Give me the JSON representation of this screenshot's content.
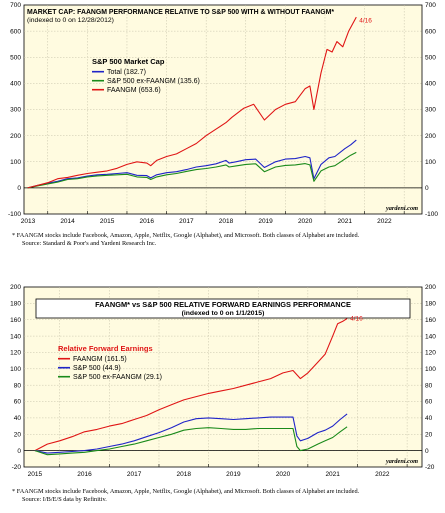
{
  "chart_data": [
    {
      "type": "line",
      "title": "MARKET CAP: FAANGM PERFORMANCE RELATIVE TO S&P 500 WITH & WITHOUT FAANGM*",
      "subtitle": "(indexed to 0 on 12/28/2012)",
      "legend_title": "S&P 500 Market Cap",
      "legend_position": "top-left",
      "ylim": [
        -100,
        700
      ],
      "yticks": [
        -100,
        0,
        100,
        200,
        300,
        400,
        500,
        600,
        700
      ],
      "xlim": [
        2012.9,
        2022.95
      ],
      "xticks": [
        2013,
        2014,
        2015,
        2016,
        2017,
        2018,
        2019,
        2020,
        2021,
        2022
      ],
      "xgrid": [
        2013.5,
        2014.5,
        2015.5,
        2016.5,
        2017.5,
        2018.5,
        2019.5,
        2020.5,
        2021.5,
        2022.5
      ],
      "grid": true,
      "annotation": {
        "text": "4/16",
        "x": 2021.29,
        "y": 640
      },
      "source_mark": "yardeni.com",
      "footnote": "*   FAANGM stocks include Facebook, Amazon, Apple, Netflix, Google (Alphabet), and Microsoft. Both classes of Alphabet are included.",
      "source": "Source: Standard & Poor's and Yardeni Research Inc.",
      "series": [
        {
          "name": "Total (182.7)",
          "color": "#1f24c8",
          "x": [
            2012.99,
            2013.25,
            2013.5,
            2013.75,
            2014.0,
            2014.25,
            2014.5,
            2014.75,
            2015.0,
            2015.25,
            2015.5,
            2015.75,
            2016.0,
            2016.1,
            2016.25,
            2016.5,
            2016.75,
            2017.0,
            2017.25,
            2017.5,
            2017.75,
            2018.0,
            2018.08,
            2018.25,
            2018.5,
            2018.75,
            2018.97,
            2019.25,
            2019.5,
            2019.75,
            2020.0,
            2020.12,
            2020.22,
            2020.4,
            2020.6,
            2020.75,
            2021.0,
            2021.15,
            2021.29
          ],
          "y": [
            0,
            10,
            18,
            25,
            35,
            38,
            45,
            50,
            52,
            55,
            58,
            48,
            47,
            38,
            50,
            58,
            62,
            70,
            80,
            85,
            92,
            105,
            95,
            100,
            108,
            110,
            78,
            100,
            110,
            112,
            120,
            115,
            35,
            90,
            115,
            120,
            150,
            165,
            182.7
          ]
        },
        {
          "name": "S&P 500 ex-FAANGM (135.6)",
          "color": "#1a8a1a",
          "x": [
            2012.99,
            2013.25,
            2013.5,
            2013.75,
            2014.0,
            2014.25,
            2014.5,
            2014.75,
            2015.0,
            2015.25,
            2015.5,
            2015.75,
            2016.0,
            2016.1,
            2016.25,
            2016.5,
            2016.75,
            2017.0,
            2017.25,
            2017.5,
            2017.75,
            2018.0,
            2018.08,
            2018.25,
            2018.5,
            2018.75,
            2018.97,
            2019.25,
            2019.5,
            2019.75,
            2020.0,
            2020.12,
            2020.22,
            2020.4,
            2020.6,
            2020.75,
            2021.0,
            2021.15,
            2021.29
          ],
          "y": [
            0,
            8,
            15,
            22,
            32,
            35,
            42,
            46,
            48,
            50,
            52,
            42,
            40,
            32,
            42,
            50,
            55,
            63,
            70,
            74,
            80,
            88,
            80,
            84,
            90,
            92,
            62,
            80,
            86,
            88,
            93,
            88,
            25,
            65,
            80,
            85,
            110,
            125,
            135.6
          ]
        },
        {
          "name": "FAANGM (653.6)",
          "color": "#e01515",
          "x": [
            2012.99,
            2013.25,
            2013.5,
            2013.75,
            2014.0,
            2014.25,
            2014.5,
            2014.75,
            2015.0,
            2015.25,
            2015.5,
            2015.75,
            2016.0,
            2016.1,
            2016.25,
            2016.5,
            2016.75,
            2017.0,
            2017.25,
            2017.5,
            2017.75,
            2018.0,
            2018.15,
            2018.45,
            2018.7,
            2018.97,
            2019.25,
            2019.5,
            2019.75,
            2020.0,
            2020.12,
            2020.22,
            2020.4,
            2020.55,
            2020.68,
            2020.8,
            2020.95,
            2021.1,
            2021.29
          ],
          "y": [
            0,
            10,
            20,
            35,
            40,
            48,
            55,
            60,
            65,
            75,
            90,
            100,
            95,
            85,
            105,
            120,
            130,
            150,
            170,
            200,
            225,
            250,
            270,
            305,
            320,
            260,
            300,
            320,
            330,
            380,
            390,
            300,
            440,
            530,
            520,
            560,
            540,
            600,
            653.6
          ]
        }
      ]
    },
    {
      "type": "line",
      "title": "FAANGM* vs S&P 500 RELATIVE FORWARD EARNINGS PERFORMANCE",
      "subtitle": "(indexed to 0 on 1/1/2015)",
      "legend_title": "Relative Forward Earnings",
      "legend_position": "top-left",
      "ylim": [
        -20,
        200
      ],
      "yticks": [
        -20,
        0,
        20,
        40,
        60,
        80,
        100,
        120,
        140,
        160,
        180,
        200
      ],
      "xlim": [
        2014.78,
        2022.8
      ],
      "xticks": [
        2015,
        2016,
        2017,
        2018,
        2019,
        2020,
        2021,
        2022
      ],
      "xgrid": [
        2015.5,
        2016.5,
        2017.5,
        2018.5,
        2019.5,
        2020.5,
        2021.5,
        2022.5
      ],
      "grid": true,
      "annotation": {
        "text": "4/16",
        "x": 2021.29,
        "y": 161.5
      },
      "source_mark": "yardeni.com",
      "footnote": "*   FAANGM stocks include Facebook, Amazon, Apple, Netflix, Google (Alphabet), and Microsoft. Both classes of Alphabet are included.",
      "source": "Source: I/B/E/S data by Refinitiv.",
      "series": [
        {
          "name": "FAANGM (161.5)",
          "color": "#e01515",
          "x": [
            2015.0,
            2015.25,
            2015.5,
            2015.75,
            2016.0,
            2016.25,
            2016.5,
            2016.75,
            2017.0,
            2017.25,
            2017.5,
            2017.75,
            2018.0,
            2018.25,
            2018.5,
            2018.75,
            2019.0,
            2019.25,
            2019.5,
            2019.75,
            2020.0,
            2020.2,
            2020.35,
            2020.5,
            2020.7,
            2020.85,
            2021.0,
            2021.1,
            2021.2,
            2021.29
          ],
          "y": [
            0,
            8,
            12,
            17,
            23,
            26,
            30,
            33,
            38,
            43,
            50,
            56,
            62,
            66,
            70,
            73,
            76,
            80,
            84,
            88,
            95,
            98,
            88,
            95,
            108,
            118,
            140,
            155,
            158,
            161.5
          ]
        },
        {
          "name": "S&P 500 (44.9)",
          "color": "#1f24c8",
          "x": [
            2015.0,
            2015.25,
            2015.5,
            2015.75,
            2016.0,
            2016.25,
            2016.5,
            2016.75,
            2017.0,
            2017.25,
            2017.5,
            2017.75,
            2018.0,
            2018.25,
            2018.5,
            2018.75,
            2019.0,
            2019.25,
            2019.5,
            2019.75,
            2020.0,
            2020.2,
            2020.28,
            2020.35,
            2020.5,
            2020.7,
            2020.85,
            2021.0,
            2021.15,
            2021.29
          ],
          "y": [
            0,
            -3,
            -2,
            -1,
            0,
            2,
            5,
            8,
            12,
            17,
            22,
            28,
            35,
            39,
            40,
            39,
            38,
            39,
            40,
            41,
            41,
            41,
            18,
            12,
            15,
            22,
            25,
            30,
            38,
            44.9
          ]
        },
        {
          "name": "S&P 500 ex-FAANGM (29.1)",
          "color": "#1a8a1a",
          "x": [
            2015.0,
            2015.25,
            2015.5,
            2015.75,
            2016.0,
            2016.25,
            2016.5,
            2016.75,
            2017.0,
            2017.25,
            2017.5,
            2017.75,
            2018.0,
            2018.25,
            2018.5,
            2018.75,
            2019.0,
            2019.25,
            2019.5,
            2019.75,
            2020.0,
            2020.2,
            2020.28,
            2020.35,
            2020.5,
            2020.7,
            2020.85,
            2021.0,
            2021.15,
            2021.29
          ],
          "y": [
            0,
            -5,
            -4,
            -3,
            -2,
            0,
            2,
            5,
            8,
            12,
            16,
            20,
            25,
            27,
            28,
            27,
            26,
            26,
            27,
            27,
            27,
            27,
            5,
            0,
            2,
            8,
            12,
            16,
            23,
            29.1
          ]
        }
      ]
    }
  ]
}
